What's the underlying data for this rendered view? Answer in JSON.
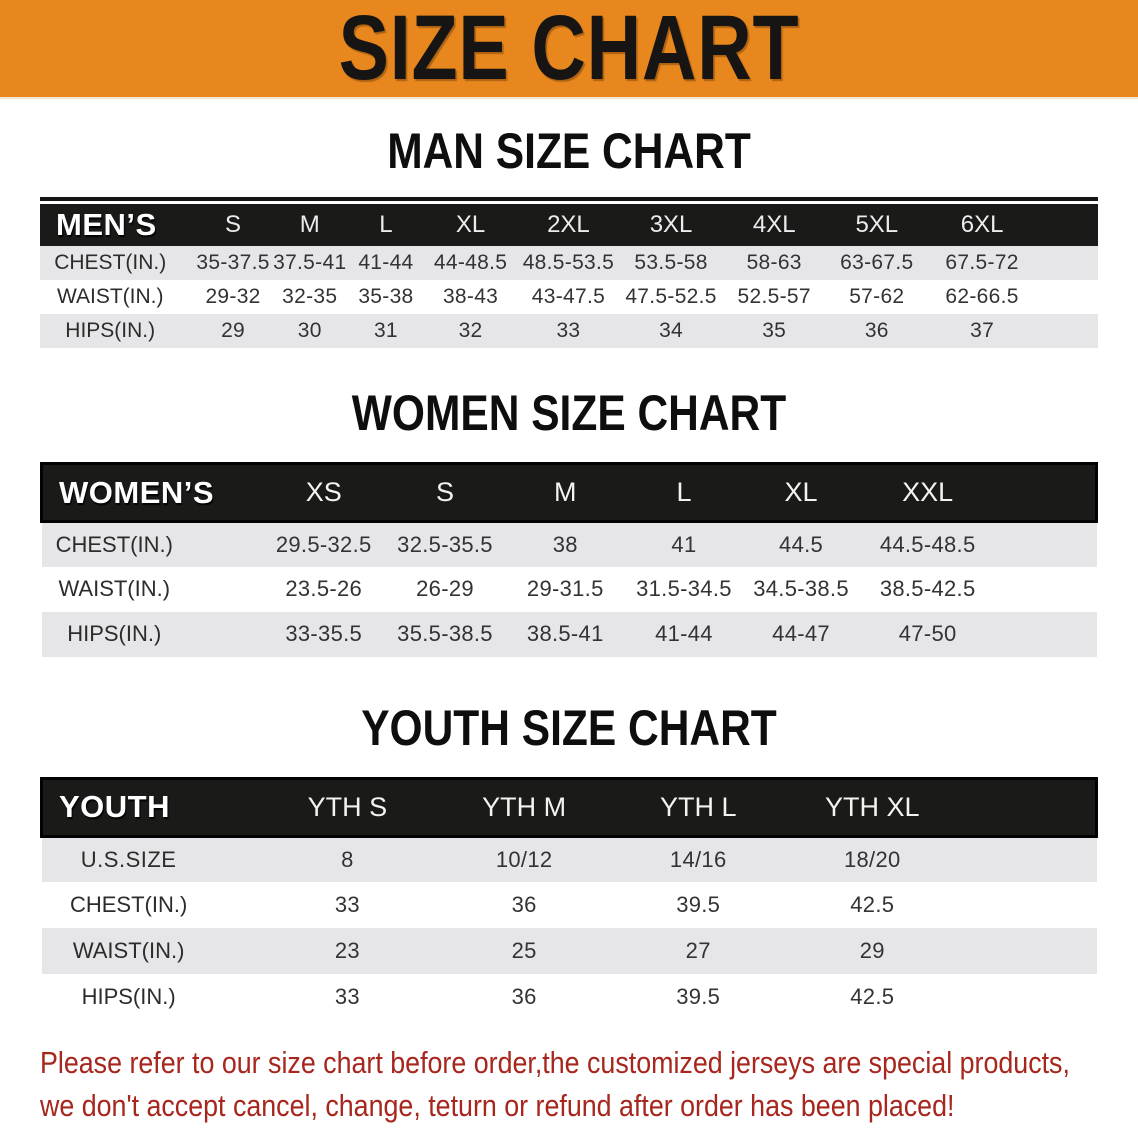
{
  "banner": {
    "title": "SIZE CHART",
    "background_color": "#e8871d",
    "text_color": "#161514"
  },
  "sections": [
    {
      "heading": "MAN SIZE CHART",
      "table": {
        "group_label": "MEN’S",
        "columns": [
          "S",
          "M",
          "L",
          "XL",
          "2XL",
          "3XL",
          "4XL",
          "5XL",
          "6XL"
        ],
        "rows": [
          {
            "label": "CHEST(IN.)",
            "values": [
              "35-37.5",
              "37.5-41",
              "41-44",
              "44-48.5",
              "48.5-53.5",
              "53.5-58",
              "58-63",
              "63-67.5",
              "67.5-72"
            ]
          },
          {
            "label": "WAIST(IN.)",
            "values": [
              "29-32",
              "32-35",
              "35-38",
              "38-43",
              "43-47.5",
              "47.5-52.5",
              "52.5-57",
              "57-62",
              "62-66.5"
            ]
          },
          {
            "label": "HIPS(IN.)",
            "values": [
              "29",
              "30",
              "31",
              "32",
              "33",
              "34",
              "35",
              "36",
              "37"
            ]
          }
        ]
      }
    },
    {
      "heading": "WOMEN SIZE CHART",
      "table": {
        "group_label": "WOMEN’S",
        "columns": [
          "XS",
          "S",
          "M",
          "L",
          "XL",
          "XXL"
        ],
        "rows": [
          {
            "label": "CHEST(IN.)",
            "values": [
              "29.5-32.5",
              "32.5-35.5",
              "38",
              "41",
              "44.5",
              "44.5-48.5"
            ]
          },
          {
            "label": "WAIST(IN.)",
            "values": [
              "23.5-26",
              "26-29",
              "29-31.5",
              "31.5-34.5",
              "34.5-38.5",
              "38.5-42.5"
            ]
          },
          {
            "label": "HIPS(IN.)",
            "values": [
              "33-35.5",
              "35.5-38.5",
              "38.5-41",
              "41-44",
              "44-47",
              "47-50"
            ]
          }
        ]
      }
    },
    {
      "heading": "YOUTH SIZE CHART",
      "table": {
        "group_label": "YOUTH",
        "columns": [
          "YTH S",
          "YTH M",
          "YTH L",
          "YTH XL"
        ],
        "rows": [
          {
            "label": "U.S.SIZE",
            "values": [
              "8",
              "10/12",
              "14/16",
              "18/20"
            ]
          },
          {
            "label": "CHEST(IN.)",
            "values": [
              "33",
              "36",
              "39.5",
              "42.5"
            ]
          },
          {
            "label": "WAIST(IN.)",
            "values": [
              "23",
              "25",
              "27",
              "29"
            ]
          },
          {
            "label": "HIPS(IN.)",
            "values": [
              "33",
              "36",
              "39.5",
              "42.5"
            ]
          }
        ]
      }
    }
  ],
  "footer": {
    "line1": "Please refer to our size chart before order,the customized jerseys are special products,",
    "line2": "we don't accept cancel, change, teturn or refund after order has been placed!",
    "text_color": "#a7261d"
  },
  "colors": {
    "banner_orange": "#e8871d",
    "header_band_black": "#1a1a19",
    "stripe_gray": "#e6e6e8",
    "note_red": "#a7261d"
  }
}
